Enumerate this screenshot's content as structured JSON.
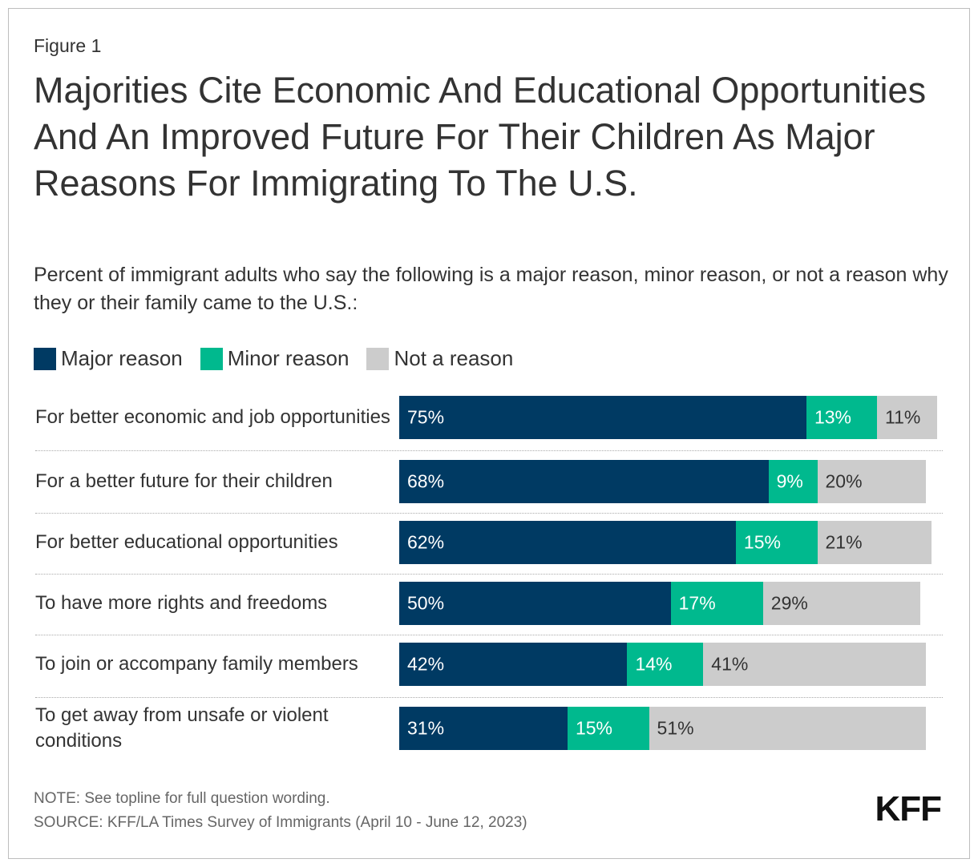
{
  "chart_data": {
    "type": "stacked-bar",
    "figure_label": "Figure 1",
    "title": "Majorities Cite Economic And Educational Opportunities And An Improved Future For Their Children As Major Reasons For Immigrating To The U.S.",
    "subtitle": "Percent of immigrant adults who say the following is a major reason, minor reason, or not a reason why they or their family came to the U.S.:",
    "categories": [
      "For better economic and job opportunities",
      "For a better future for their children",
      "For better educational opportunities",
      "To have more rights and freedoms",
      "To join or accompany family members",
      "To get away from unsafe or violent conditions"
    ],
    "series": [
      {
        "name": "Major reason",
        "color": "#003a63",
        "label_color": "#ffffff",
        "values": [
          75,
          68,
          62,
          50,
          42,
          31
        ],
        "value_labels": [
          "75%",
          "68%",
          "62%",
          "50%",
          "42%",
          "31%"
        ]
      },
      {
        "name": "Minor reason",
        "color": "#00b98e",
        "label_color": "#ffffff",
        "values": [
          13,
          9,
          15,
          17,
          14,
          15
        ],
        "value_labels": [
          "13%",
          "9%",
          "15%",
          "17%",
          "14%",
          "15%"
        ]
      },
      {
        "name": "Not a reason",
        "color": "#cccccc",
        "label_color": "#333333",
        "values": [
          11,
          20,
          21,
          29,
          41,
          51
        ],
        "value_labels": [
          "11%",
          "20%",
          "21%",
          "29%",
          "41%",
          "51%"
        ]
      }
    ],
    "note": "NOTE: See topline for full question wording.",
    "source": "SOURCE: KFF/LA Times Survey of Immigrants (April 10 - June 12, 2023)",
    "logo": "KFF"
  }
}
